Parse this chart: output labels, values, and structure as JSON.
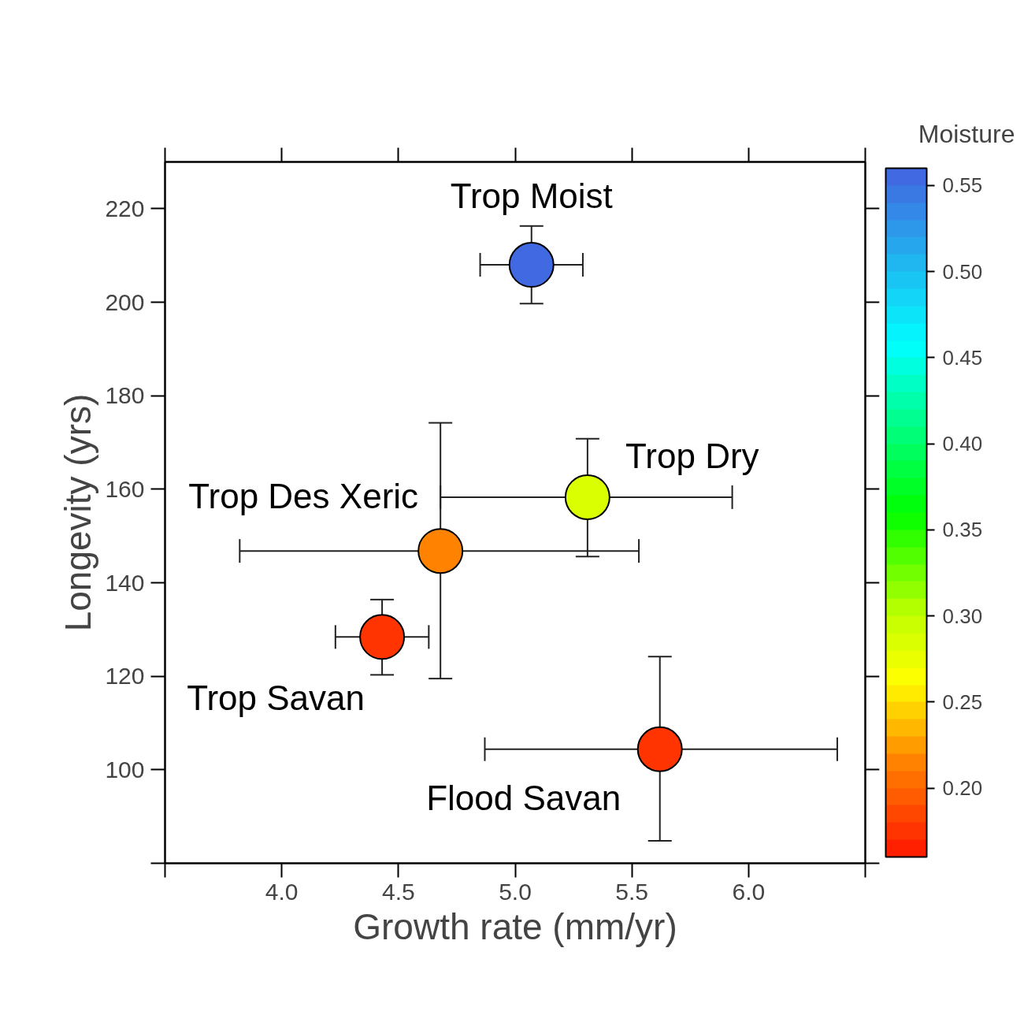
{
  "chart_data": {
    "type": "scatter",
    "xlabel": "Growth rate (mm/yr)",
    "ylabel": "Longevity (yrs)",
    "clabel": "Moisture",
    "x": [
      5.07,
      5.31,
      4.68,
      4.43,
      5.62
    ],
    "values": [
      208,
      158.3,
      146.8,
      128.4,
      104.4
    ],
    "xerrors": [
      [
        4.85,
        5.29
      ],
      [
        4.68,
        5.93
      ],
      [
        3.82,
        5.53
      ],
      [
        4.23,
        4.63
      ],
      [
        4.87,
        6.38
      ]
    ],
    "errors": [
      [
        199.7,
        216.3
      ],
      [
        145.6,
        170.8
      ],
      [
        119.5,
        174.2
      ],
      [
        120.3,
        136.4
      ],
      [
        84.8,
        124.2
      ]
    ],
    "cvalues": [
      0.55,
      0.29,
      0.215,
      0.17,
      0.17
    ],
    "clim": [
      0.16,
      0.56
    ],
    "cticks": [
      {
        "value": 0.2,
        "label": "0.20"
      },
      0.25,
      {
        "value": 0.3,
        "label": "0.30"
      },
      0.35,
      {
        "value": 0.4,
        "label": "0.40"
      },
      0.45,
      {
        "value": 0.5,
        "label": "0.50"
      },
      0.55
    ],
    "xlim": [
      3.5,
      6.5
    ],
    "xticks": [
      {
        "value": 3.5,
        "label": null
      },
      {
        "value": 4,
        "label": "4.0"
      },
      4.5,
      {
        "value": 5,
        "label": "5.0"
      },
      5.5,
      {
        "value": 6,
        "label": "6.0"
      },
      {
        "value": 6.5,
        "label": null
      }
    ],
    "ylim": [
      80,
      230
    ],
    "yticks": [
      {
        "value": 80,
        "label": null
      },
      100,
      120,
      140,
      160,
      180,
      200,
      220
    ],
    "marker": "circle",
    "grid": false,
    "annotations": [
      {
        "text": "Trop Moist",
        "x": 5.07,
        "y": 208
      },
      {
        "text": "Trop Dry",
        "x": 5.31,
        "y": 158.3
      },
      {
        "text": "Trop Des Xeric",
        "x": 4.68,
        "y": 146.8
      },
      {
        "text": "Trop Savan",
        "x": 4.43,
        "y": 128.4
      },
      {
        "text": "Flood Savan",
        "x": 5.62,
        "y": 104.4
      }
    ]
  }
}
